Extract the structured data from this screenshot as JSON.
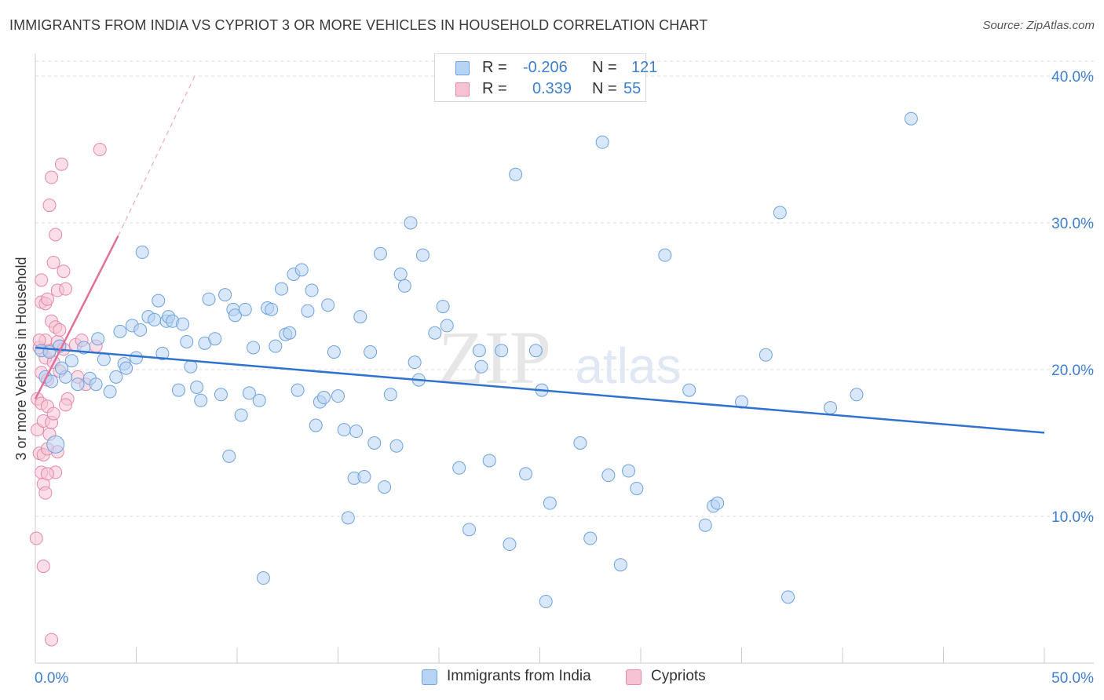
{
  "header": {
    "title": "IMMIGRANTS FROM INDIA VS CYPRIOT 3 OR MORE VEHICLES IN HOUSEHOLD CORRELATION CHART",
    "source": "Source: ZipAtlas.com"
  },
  "watermark": {
    "zip": "ZIP",
    "atlas": "atlas"
  },
  "legend": {
    "rows": [
      {
        "r_label": "R =",
        "r_value": "-0.206",
        "n_label": "N =",
        "n_value": "121"
      },
      {
        "r_label": "R =",
        "r_value": "0.339",
        "n_label": "N =",
        "n_value": "55"
      }
    ],
    "bottom": [
      "Immigrants from India",
      "Cypriots"
    ]
  },
  "colors": {
    "india_fill": "#b8d4f4",
    "india_stroke": "#6fa2de",
    "india_line": "#2f72cf",
    "cyp_fill": "#f7c3d4",
    "cyp_stroke": "#e48aa8",
    "cyp_line": "#e0709a",
    "tick_label": "#3f7fd0",
    "grid": "#dddddd"
  },
  "chart_data": {
    "type": "scatter",
    "xlabel": "",
    "ylabel": "3 or more Vehicles in Household",
    "xlim": [
      0,
      50
    ],
    "ylim": [
      0,
      41.5
    ],
    "x_tick_labels": [
      "0.0%",
      "50.0%"
    ],
    "y_ticks": [
      10,
      20,
      30,
      40
    ],
    "y_tick_labels": [
      "10.0%",
      "20.0%",
      "30.0%",
      "40.0%"
    ],
    "grid": "horizontal dashed",
    "series": [
      {
        "name": "Immigrants from India",
        "r": -0.206,
        "n": 121,
        "trend": [
          [
            0,
            21.5
          ],
          [
            50,
            15.7
          ]
        ],
        "points": [
          [
            0.3,
            21.3
          ],
          [
            0.5,
            19.5
          ],
          [
            0.8,
            19.2
          ],
          [
            1.0,
            14.9
          ],
          [
            1.2,
            21.6
          ],
          [
            1.5,
            19.5
          ],
          [
            1.8,
            20.6
          ],
          [
            2.1,
            19.0
          ],
          [
            2.4,
            21.5
          ],
          [
            2.7,
            19.4
          ],
          [
            3.0,
            19.0
          ],
          [
            3.1,
            22.1
          ],
          [
            3.4,
            20.7
          ],
          [
            3.7,
            18.5
          ],
          [
            4.0,
            19.5
          ],
          [
            4.2,
            22.6
          ],
          [
            4.4,
            20.4
          ],
          [
            4.5,
            20.1
          ],
          [
            4.8,
            23.0
          ],
          [
            5.0,
            20.8
          ],
          [
            5.2,
            22.7
          ],
          [
            5.3,
            28.0
          ],
          [
            5.6,
            23.6
          ],
          [
            5.9,
            23.4
          ],
          [
            6.1,
            24.7
          ],
          [
            6.3,
            21.1
          ],
          [
            6.5,
            23.3
          ],
          [
            6.6,
            23.6
          ],
          [
            6.8,
            23.3
          ],
          [
            7.1,
            18.6
          ],
          [
            7.3,
            23.1
          ],
          [
            7.5,
            21.9
          ],
          [
            7.7,
            20.2
          ],
          [
            8.0,
            18.8
          ],
          [
            8.2,
            17.9
          ],
          [
            8.4,
            21.8
          ],
          [
            8.6,
            24.8
          ],
          [
            8.9,
            22.1
          ],
          [
            9.2,
            18.3
          ],
          [
            9.4,
            25.1
          ],
          [
            9.6,
            14.1
          ],
          [
            9.8,
            24.1
          ],
          [
            9.9,
            23.7
          ],
          [
            10.2,
            16.9
          ],
          [
            10.4,
            24.1
          ],
          [
            10.6,
            18.4
          ],
          [
            10.8,
            21.5
          ],
          [
            11.1,
            17.9
          ],
          [
            11.3,
            5.8
          ],
          [
            11.5,
            24.2
          ],
          [
            11.7,
            24.1
          ],
          [
            11.9,
            21.6
          ],
          [
            12.2,
            25.5
          ],
          [
            12.4,
            22.4
          ],
          [
            12.6,
            22.5
          ],
          [
            12.8,
            26.5
          ],
          [
            13.0,
            18.6
          ],
          [
            13.2,
            26.8
          ],
          [
            13.5,
            24.0
          ],
          [
            13.7,
            25.4
          ],
          [
            13.9,
            16.2
          ],
          [
            14.1,
            17.8
          ],
          [
            14.3,
            18.1
          ],
          [
            14.5,
            24.4
          ],
          [
            14.8,
            21.2
          ],
          [
            15.0,
            18.2
          ],
          [
            15.3,
            15.9
          ],
          [
            15.5,
            9.9
          ],
          [
            15.8,
            12.6
          ],
          [
            15.9,
            15.8
          ],
          [
            16.1,
            23.6
          ],
          [
            16.3,
            12.7
          ],
          [
            16.6,
            21.2
          ],
          [
            16.8,
            15.0
          ],
          [
            17.1,
            27.9
          ],
          [
            17.3,
            12.0
          ],
          [
            17.6,
            18.3
          ],
          [
            17.9,
            14.8
          ],
          [
            18.1,
            26.5
          ],
          [
            18.3,
            25.7
          ],
          [
            18.6,
            30.0
          ],
          [
            18.8,
            20.5
          ],
          [
            19.0,
            19.3
          ],
          [
            19.2,
            27.8
          ],
          [
            19.8,
            22.5
          ],
          [
            20.2,
            24.3
          ],
          [
            20.4,
            23.0
          ],
          [
            21.0,
            13.3
          ],
          [
            21.5,
            9.1
          ],
          [
            22.0,
            21.3
          ],
          [
            22.1,
            20.2
          ],
          [
            22.5,
            13.8
          ],
          [
            23.1,
            21.3
          ],
          [
            23.5,
            8.1
          ],
          [
            23.8,
            33.3
          ],
          [
            24.3,
            12.9
          ],
          [
            24.8,
            21.3
          ],
          [
            25.1,
            18.6
          ],
          [
            25.3,
            4.2
          ],
          [
            25.5,
            10.9
          ],
          [
            27.0,
            15.0
          ],
          [
            27.5,
            8.5
          ],
          [
            28.1,
            35.5
          ],
          [
            28.4,
            12.8
          ],
          [
            29.0,
            6.7
          ],
          [
            29.4,
            13.1
          ],
          [
            29.8,
            11.9
          ],
          [
            31.2,
            27.8
          ],
          [
            32.4,
            18.6
          ],
          [
            33.2,
            9.4
          ],
          [
            33.6,
            10.7
          ],
          [
            33.8,
            10.9
          ],
          [
            35.0,
            17.8
          ],
          [
            36.2,
            21.0
          ],
          [
            36.9,
            30.7
          ],
          [
            37.3,
            4.5
          ],
          [
            39.4,
            17.4
          ],
          [
            40.7,
            18.3
          ],
          [
            43.4,
            37.1
          ],
          [
            0.7,
            21.2
          ],
          [
            1.3,
            20.1
          ]
        ]
      },
      {
        "name": "Cypriots",
        "r": 0.339,
        "n": 55,
        "trend": [
          [
            0,
            18.0
          ],
          [
            4.1,
            29.1
          ]
        ],
        "trend_extended": [
          [
            4.1,
            29.1
          ],
          [
            7.9,
            40.0
          ]
        ],
        "points": [
          [
            0.05,
            8.5
          ],
          [
            0.1,
            15.9
          ],
          [
            0.1,
            18.0
          ],
          [
            0.2,
            14.3
          ],
          [
            0.2,
            21.5
          ],
          [
            0.3,
            24.6
          ],
          [
            0.3,
            26.1
          ],
          [
            0.3,
            19.8
          ],
          [
            0.3,
            17.7
          ],
          [
            0.4,
            6.6
          ],
          [
            0.4,
            12.2
          ],
          [
            0.4,
            14.2
          ],
          [
            0.4,
            16.5
          ],
          [
            0.5,
            20.8
          ],
          [
            0.5,
            22.0
          ],
          [
            0.5,
            11.6
          ],
          [
            0.5,
            24.5
          ],
          [
            0.6,
            24.8
          ],
          [
            0.6,
            14.6
          ],
          [
            0.6,
            17.5
          ],
          [
            0.6,
            19.3
          ],
          [
            0.7,
            15.6
          ],
          [
            0.7,
            21.3
          ],
          [
            0.7,
            31.2
          ],
          [
            0.8,
            16.4
          ],
          [
            0.8,
            1.6
          ],
          [
            0.8,
            23.3
          ],
          [
            0.8,
            33.1
          ],
          [
            0.9,
            20.5
          ],
          [
            0.9,
            17.0
          ],
          [
            0.9,
            27.3
          ],
          [
            1.0,
            13.0
          ],
          [
            1.0,
            22.9
          ],
          [
            1.0,
            29.2
          ],
          [
            1.1,
            14.4
          ],
          [
            1.1,
            21.9
          ],
          [
            1.1,
            25.4
          ],
          [
            1.2,
            22.7
          ],
          [
            1.2,
            19.9
          ],
          [
            1.2,
            21.6
          ],
          [
            1.3,
            34.0
          ],
          [
            1.4,
            21.4
          ],
          [
            1.4,
            26.7
          ],
          [
            1.5,
            25.5
          ],
          [
            1.6,
            18.0
          ],
          [
            2.0,
            21.7
          ],
          [
            2.1,
            19.5
          ],
          [
            2.3,
            22.0
          ],
          [
            2.5,
            19.0
          ],
          [
            3.0,
            21.6
          ],
          [
            3.2,
            35.0
          ],
          [
            1.5,
            17.6
          ],
          [
            0.2,
            22.0
          ],
          [
            0.3,
            13.0
          ],
          [
            0.6,
            12.9
          ]
        ]
      }
    ]
  }
}
